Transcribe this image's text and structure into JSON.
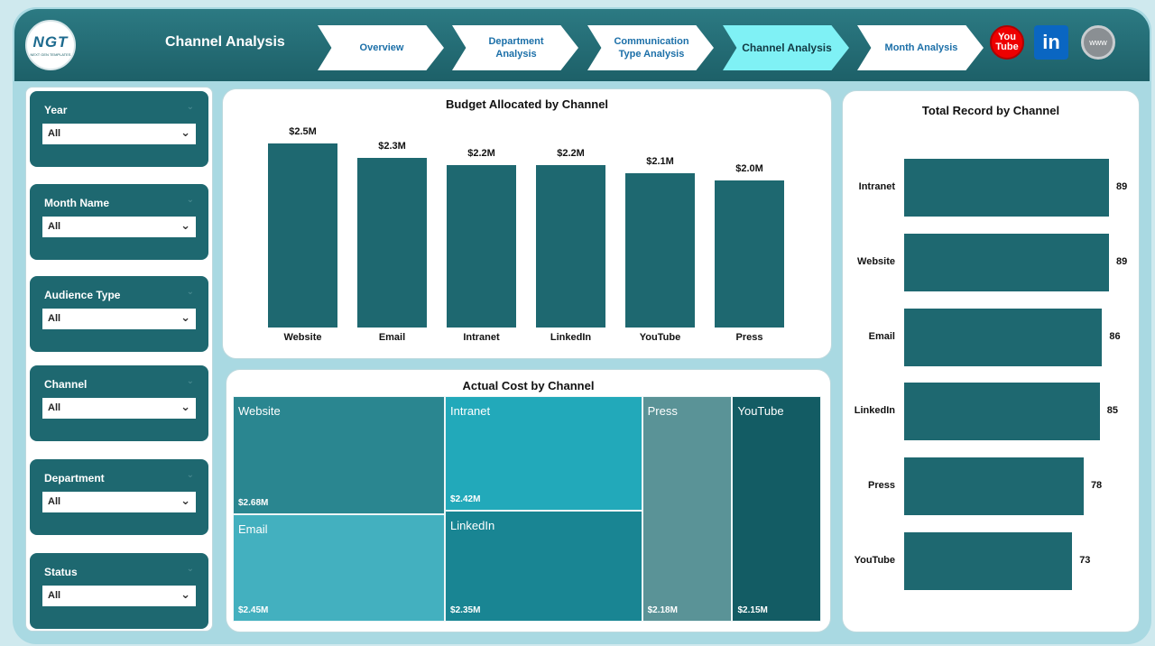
{
  "app": {
    "logo_text": "NGT",
    "logo_tagline": "NEXT GEN TEMPLATES",
    "title": "Channel Analysis"
  },
  "nav": [
    {
      "label": "Overview",
      "active": false
    },
    {
      "label": "Department Analysis",
      "active": false
    },
    {
      "label": "Communication Type Analysis",
      "active": false
    },
    {
      "label": "Channel Analysis",
      "active": true
    },
    {
      "label": "Month Analysis",
      "active": false
    }
  ],
  "social": {
    "youtube": "You Tube",
    "linkedin": "in",
    "web": "www"
  },
  "filters": [
    {
      "label": "Year",
      "value": "All"
    },
    {
      "label": "Month Name",
      "value": "All"
    },
    {
      "label": "Audience Type",
      "value": "All"
    },
    {
      "label": "Channel",
      "value": "All"
    },
    {
      "label": "Department",
      "value": "All"
    },
    {
      "label": "Status",
      "value": "All"
    }
  ],
  "chart_data": [
    {
      "type": "bar",
      "title": "Budget Allocated by Channel",
      "categories": [
        "Website",
        "Email",
        "Intranet",
        "LinkedIn",
        "YouTube",
        "Press"
      ],
      "values": [
        2.5,
        2.3,
        2.2,
        2.2,
        2.1,
        2.0
      ],
      "data_labels": [
        "$2.5M",
        "$2.3M",
        "$2.2M",
        "$2.2M",
        "$2.1M",
        "$2.0M"
      ],
      "unit": "$M",
      "ylim": [
        0,
        2.5
      ],
      "grid": false,
      "color": "#1e6870"
    },
    {
      "type": "treemap",
      "title": "Actual Cost by Channel",
      "categories": [
        "Website",
        "Email",
        "Intranet",
        "LinkedIn",
        "Press",
        "YouTube"
      ],
      "values": [
        2.68,
        2.45,
        2.42,
        2.35,
        2.18,
        2.15
      ],
      "data_labels": [
        "$2.68M",
        "$2.45M",
        "$2.42M",
        "$2.35M",
        "$2.18M",
        "$2.15M"
      ],
      "colors": [
        "#2a8690",
        "#43b0bf",
        "#22a9ba",
        "#198593",
        "#5a9397",
        "#135c64"
      ]
    },
    {
      "type": "bar",
      "orientation": "horizontal",
      "title": "Total Record by Channel",
      "categories": [
        "Intranet",
        "Website",
        "Email",
        "LinkedIn",
        "Press",
        "YouTube"
      ],
      "values": [
        89,
        89,
        86,
        85,
        78,
        73
      ],
      "xlim": [
        0,
        89
      ],
      "grid": false,
      "color": "#1e6870"
    }
  ]
}
